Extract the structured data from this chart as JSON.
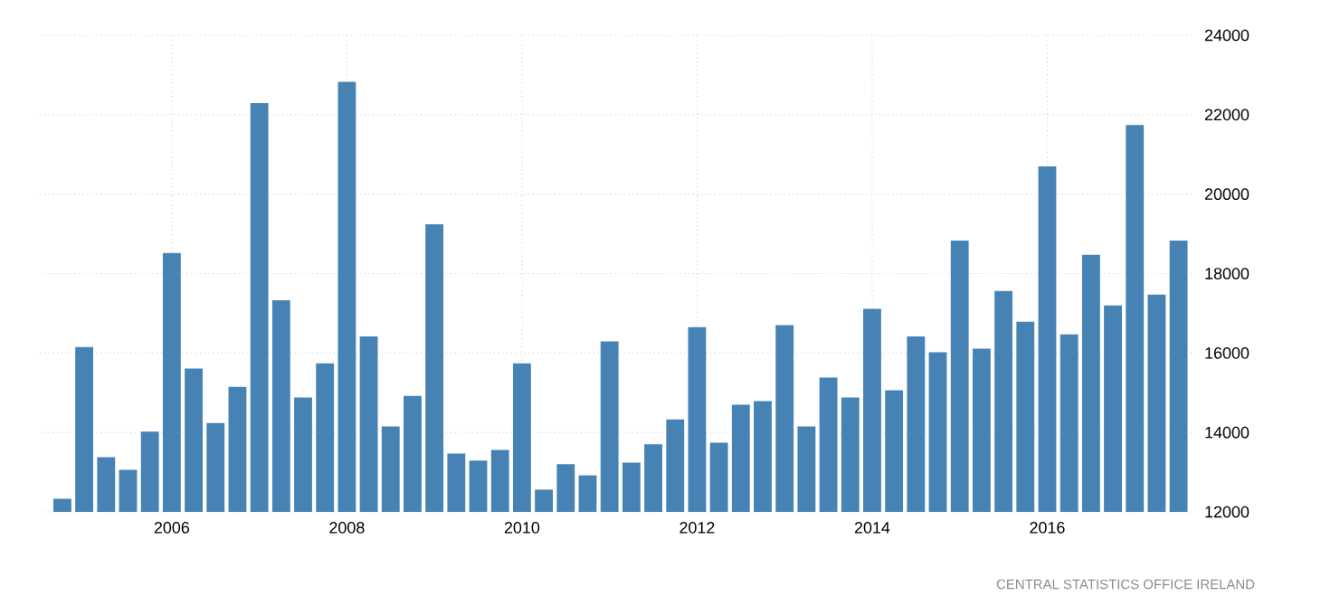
{
  "chart_data": {
    "type": "bar",
    "categories": [
      null,
      null,
      null,
      null,
      null,
      "2006",
      null,
      null,
      null,
      null,
      null,
      null,
      null,
      "2008",
      null,
      null,
      null,
      null,
      null,
      null,
      null,
      "2010",
      null,
      null,
      null,
      null,
      null,
      null,
      null,
      "2012",
      null,
      null,
      null,
      null,
      null,
      null,
      null,
      "2014",
      null,
      null,
      null,
      null,
      null,
      null,
      null,
      "2016",
      null,
      null,
      null,
      null,
      null,
      null
    ],
    "values": [
      12330,
      16150,
      13380,
      13060,
      14020,
      18520,
      15610,
      14240,
      15150,
      22290,
      17330,
      14880,
      15740,
      22830,
      16420,
      14150,
      14920,
      19240,
      13470,
      13290,
      13560,
      15740,
      12560,
      13200,
      12920,
      16290,
      13240,
      13700,
      14330,
      16650,
      13740,
      14700,
      14790,
      16700,
      14150,
      15380,
      14880,
      17110,
      15060,
      16420,
      16020,
      18830,
      16110,
      17560,
      16790,
      20700,
      16470,
      18470,
      17200,
      21740,
      17470,
      18830
    ],
    "color": "#4682b4",
    "ylim": [
      12000,
      24000
    ],
    "yticks": [
      12000,
      14000,
      16000,
      18000,
      20000,
      22000,
      24000
    ],
    "grid": true,
    "annotations": [
      "CENTRAL STATISTICS OFFICE IRELAND"
    ]
  }
}
